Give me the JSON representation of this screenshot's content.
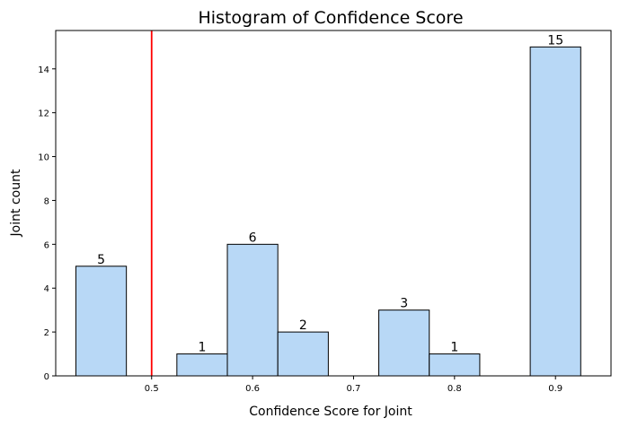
{
  "chart_data": {
    "type": "bar",
    "title": "Histogram of Confidence Score",
    "xlabel": "Confidence Score for Joint",
    "ylabel": "Joint count",
    "xlim": [
      0.405,
      0.955
    ],
    "ylim": [
      0,
      15.75
    ],
    "xticks": [
      0.5,
      0.6,
      0.7,
      0.8,
      0.9
    ],
    "yticks": [
      0,
      2,
      4,
      6,
      8,
      10,
      12,
      14
    ],
    "bins": [
      {
        "x0": 0.425,
        "x1": 0.475,
        "count": 5
      },
      {
        "x0": 0.525,
        "x1": 0.575,
        "count": 1
      },
      {
        "x0": 0.575,
        "x1": 0.625,
        "count": 6
      },
      {
        "x0": 0.625,
        "x1": 0.675,
        "count": 2
      },
      {
        "x0": 0.725,
        "x1": 0.775,
        "count": 3
      },
      {
        "x0": 0.775,
        "x1": 0.825,
        "count": 1
      },
      {
        "x0": 0.875,
        "x1": 0.925,
        "count": 15
      }
    ],
    "threshold_line": {
      "x": 0.5,
      "color": "#ff0000"
    },
    "bar_color": "#b8d8f6",
    "bar_edge_color": "#000000",
    "grid": false,
    "legend": "none"
  }
}
